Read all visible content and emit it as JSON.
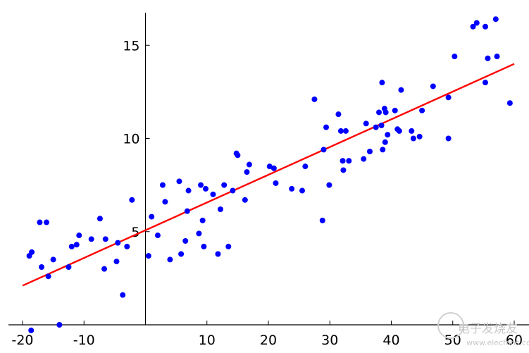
{
  "chart_data": {
    "type": "scatter",
    "xlim": [
      -20,
      60
    ],
    "ylim": [
      0,
      16.5
    ],
    "x_ticks": [
      -20,
      -10,
      10,
      20,
      30,
      40,
      50,
      60
    ],
    "y_ticks": [
      5,
      10,
      15
    ],
    "grid": false,
    "colors": {
      "points": "#0000ff",
      "fit_line": "#ff0000",
      "axes": "#000000"
    },
    "fit_line": {
      "x": [
        -20,
        60
      ],
      "y": [
        2.1,
        14.0
      ]
    },
    "points": [
      [
        -18.9,
        3.7
      ],
      [
        -18.5,
        3.9
      ],
      [
        -18.6,
        -0.3
      ],
      [
        -17.2,
        5.5
      ],
      [
        -16.9,
        3.1
      ],
      [
        -16.1,
        5.5
      ],
      [
        -15.8,
        2.6
      ],
      [
        -15.0,
        3.5
      ],
      [
        -14.0,
        0.0
      ],
      [
        -12.5,
        3.1
      ],
      [
        -12.0,
        4.2
      ],
      [
        -11.2,
        4.3
      ],
      [
        -10.8,
        4.8
      ],
      [
        -8.8,
        4.6
      ],
      [
        -7.4,
        5.7
      ],
      [
        -6.7,
        3.0
      ],
      [
        -6.5,
        4.6
      ],
      [
        -4.7,
        3.4
      ],
      [
        -4.5,
        4.4
      ],
      [
        -3.7,
        1.6
      ],
      [
        -3.0,
        4.2
      ],
      [
        -2.2,
        6.7
      ],
      [
        0.5,
        3.7
      ],
      [
        1.0,
        5.8
      ],
      [
        2.0,
        4.8
      ],
      [
        2.8,
        7.5
      ],
      [
        3.2,
        6.6
      ],
      [
        4.0,
        3.5
      ],
      [
        5.5,
        7.7
      ],
      [
        5.8,
        3.8
      ],
      [
        6.5,
        4.5
      ],
      [
        6.8,
        6.1
      ],
      [
        7.0,
        7.2
      ],
      [
        8.7,
        4.9
      ],
      [
        9.0,
        7.5
      ],
      [
        9.3,
        5.6
      ],
      [
        9.5,
        4.2
      ],
      [
        9.8,
        7.3
      ],
      [
        11.0,
        7.0
      ],
      [
        11.8,
        3.8
      ],
      [
        12.2,
        6.2
      ],
      [
        12.8,
        7.5
      ],
      [
        13.5,
        4.2
      ],
      [
        14.2,
        7.2
      ],
      [
        14.8,
        9.2
      ],
      [
        15.0,
        9.1
      ],
      [
        16.2,
        6.7
      ],
      [
        16.5,
        8.2
      ],
      [
        16.9,
        8.6
      ],
      [
        20.2,
        8.5
      ],
      [
        20.9,
        8.4
      ],
      [
        21.2,
        7.6
      ],
      [
        23.8,
        7.3
      ],
      [
        25.5,
        7.2
      ],
      [
        26.0,
        8.5
      ],
      [
        27.5,
        12.1
      ],
      [
        28.8,
        5.6
      ],
      [
        29.0,
        9.4
      ],
      [
        29.4,
        10.6
      ],
      [
        29.9,
        7.5
      ],
      [
        31.4,
        11.3
      ],
      [
        31.8,
        10.4
      ],
      [
        32.1,
        8.8
      ],
      [
        32.2,
        8.3
      ],
      [
        32.6,
        10.4
      ],
      [
        33.1,
        8.8
      ],
      [
        35.5,
        8.9
      ],
      [
        35.9,
        10.8
      ],
      [
        36.5,
        9.3
      ],
      [
        37.5,
        10.6
      ],
      [
        38.0,
        11.4
      ],
      [
        38.4,
        10.7
      ],
      [
        38.5,
        13.0
      ],
      [
        38.6,
        9.4
      ],
      [
        38.9,
        11.6
      ],
      [
        39.0,
        9.8
      ],
      [
        39.1,
        11.4
      ],
      [
        39.4,
        10.2
      ],
      [
        40.6,
        11.5
      ],
      [
        41.0,
        10.5
      ],
      [
        41.3,
        10.4
      ],
      [
        41.6,
        12.6
      ],
      [
        43.3,
        10.4
      ],
      [
        43.6,
        10.0
      ],
      [
        44.6,
        10.1
      ],
      [
        45.0,
        11.5
      ],
      [
        46.8,
        12.8
      ],
      [
        49.3,
        12.2
      ],
      [
        49.3,
        10.0
      ],
      [
        50.3,
        14.4
      ],
      [
        53.3,
        16.0
      ],
      [
        53.9,
        16.2
      ],
      [
        55.3,
        16.0
      ],
      [
        55.3,
        13.0
      ],
      [
        55.7,
        14.3
      ],
      [
        57.0,
        16.4
      ],
      [
        57.2,
        14.4
      ],
      [
        59.3,
        11.9
      ]
    ]
  }
}
